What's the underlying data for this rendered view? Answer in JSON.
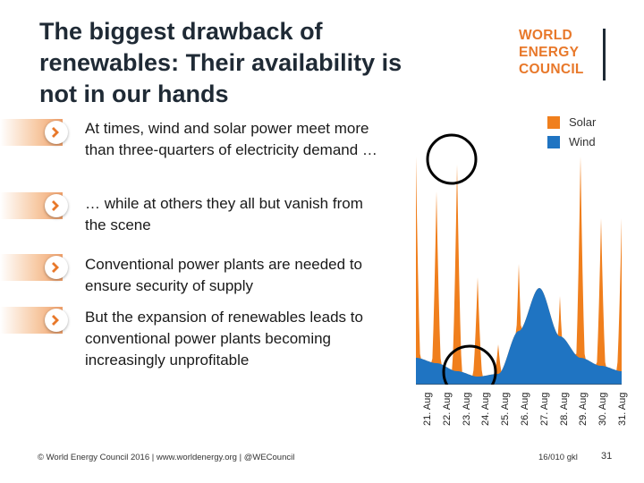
{
  "slide": {
    "title": "The biggest drawback of renewables: Their availability is not in our hands"
  },
  "logo": {
    "line1": "WORLD",
    "line2": "ENERGY",
    "line3": "COUNCIL"
  },
  "bullets": [
    {
      "text": "At times, wind and solar power meet more than three-quarters of electricity demand …"
    },
    {
      "text": "… while at others they all but vanish from the scene"
    },
    {
      "text": "Conventional power plants are needed to ensure security of supply"
    },
    {
      "text": "But the expansion of renewables leads to conventional power plants becoming  increasingly unprofitable"
    }
  ],
  "legend": [
    {
      "label": "Solar",
      "color": "#f07f1d"
    },
    {
      "label": "Wind",
      "color": "#1f74c2"
    }
  ],
  "chart_data": {
    "type": "area",
    "title": "",
    "xlabel": "",
    "ylabel": "",
    "ylim": [
      0,
      100
    ],
    "categories": [
      "21. Aug",
      "22. Aug",
      "23. Aug",
      "24. Aug",
      "25. Aug",
      "26. Aug",
      "27. Aug",
      "28. Aug",
      "29. Aug",
      "30. Aug",
      "31. Aug"
    ],
    "series": [
      {
        "name": "Wind",
        "color": "#1f74c2",
        "values": [
          10,
          8,
          5,
          3,
          4,
          20,
          36,
          18,
          10,
          7,
          5
        ]
      },
      {
        "name": "Solar",
        "color": "#f07f1d",
        "values": [
          85,
          72,
          82,
          40,
          15,
          45,
          30,
          33,
          85,
          62,
          62
        ]
      }
    ],
    "annotations": [
      "circle-high-renewables",
      "circle-low-renewables"
    ]
  },
  "footer": {
    "copyright": "© World Energy Council 2016 | www.worldenergy.org | @WECouncil",
    "docref": "16/010 gkl",
    "page": "31"
  }
}
